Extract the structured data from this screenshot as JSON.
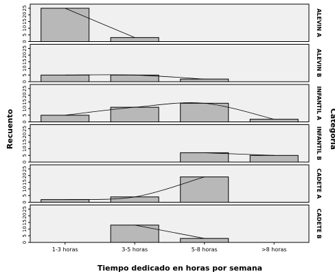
{
  "chart_data": {
    "type": "bar",
    "xlabel": "Tiempo dedicado en horas por semana",
    "ylabel": "Recuento",
    "facet_label": "Categoria",
    "categories": [
      "1-3 horas",
      "3-5 horas",
      "5-8 horas",
      ">8 horas"
    ],
    "ylim": [
      0,
      25
    ],
    "yticks": [
      0,
      5,
      10,
      15,
      20,
      25
    ],
    "ytick_labels": [
      "0",
      "5",
      "10",
      "15",
      "20",
      "25"
    ],
    "bar_color": "#b8b8b8",
    "panel_color": "#f0f0f0",
    "series": [
      {
        "name": "ALEVIN A",
        "values": [
          25,
          3,
          0,
          0
        ]
      },
      {
        "name": "ALEVIN B",
        "values": [
          5,
          5,
          2,
          0
        ]
      },
      {
        "name": "INFANTIL A",
        "values": [
          5,
          11,
          14,
          2
        ]
      },
      {
        "name": "INFANTIL B",
        "values": [
          0,
          0,
          7,
          5
        ]
      },
      {
        "name": "CADETE A",
        "values": [
          2,
          4,
          19,
          0
        ]
      },
      {
        "name": "CADETE B",
        "values": [
          0,
          13,
          3,
          0
        ]
      }
    ]
  }
}
